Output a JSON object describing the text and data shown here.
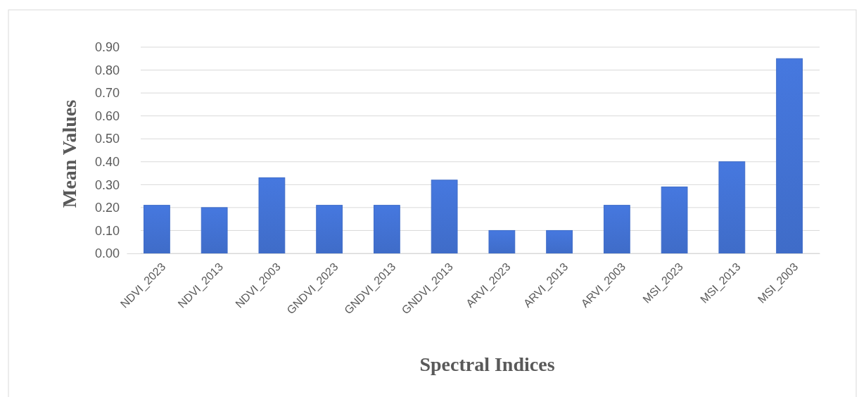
{
  "chart_data": {
    "type": "bar",
    "xlabel": "Spectral Indices",
    "ylabel": "Mean Values",
    "categories": [
      "NDVI_2023",
      "NDVI_2013",
      "NDVI_2003",
      "GNDVI_2023",
      "GNDVI_2013",
      "GNDVI_2013",
      "ARVI_2023",
      "ARVI_2013",
      "ARVI_2003",
      "MSI_2023",
      "MSI_2013",
      "MSI_2003"
    ],
    "values": [
      0.21,
      0.2,
      0.33,
      0.21,
      0.21,
      0.32,
      0.1,
      0.1,
      0.21,
      0.29,
      0.4,
      0.85
    ],
    "color": "#3f6cc8",
    "ylim": [
      0,
      0.9
    ],
    "yticks": [
      {
        "value": 0,
        "label": "0.00"
      },
      {
        "value": 0.1,
        "label": "0.10"
      },
      {
        "value": 0.2,
        "label": "0.20"
      },
      {
        "value": 0.3,
        "label": "0.30"
      },
      {
        "value": 0.4,
        "label": "0.40"
      },
      {
        "value": 0.5,
        "label": "0.50"
      },
      {
        "value": 0.6,
        "label": "0.60"
      },
      {
        "value": 0.7,
        "label": "0.70"
      },
      {
        "value": 0.8,
        "label": "0.80"
      },
      {
        "value": 0.9,
        "label": "0.90"
      }
    ],
    "grid": "y"
  }
}
